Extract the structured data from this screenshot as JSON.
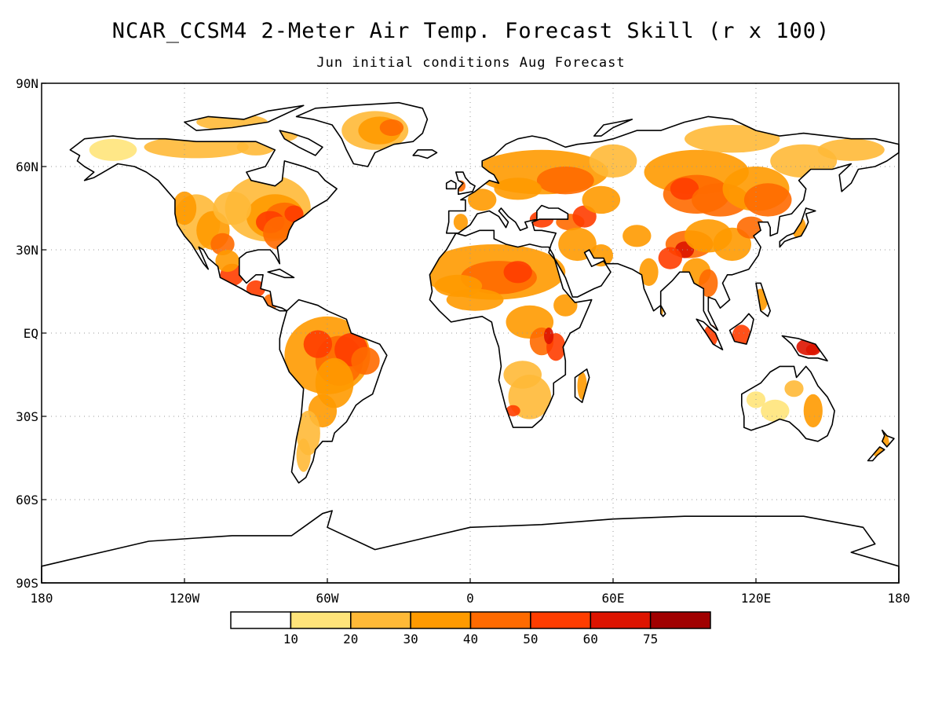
{
  "title": "NCAR_CCSM4 2-Meter Air Temp. Forecast Skill (r x 100)",
  "subtitle": "Jun initial conditions  Aug Forecast",
  "map": {
    "projection": "equirectangular",
    "lon_range": [
      -180,
      180
    ],
    "lat_range": [
      -90,
      90
    ],
    "gridlines": "dotted",
    "lat_labels": [
      "90N",
      "60N",
      "30N",
      "EQ",
      "30S",
      "60S",
      "90S"
    ],
    "lat_values": [
      90,
      60,
      30,
      0,
      -30,
      -60,
      -90
    ],
    "lon_labels": [
      "180",
      "120W",
      "60W",
      "0",
      "60E",
      "120E",
      "180"
    ],
    "lon_values": [
      -180,
      -120,
      -60,
      0,
      60,
      120,
      180
    ]
  },
  "legend": {
    "labels": [
      "10",
      "20",
      "30",
      "40",
      "50",
      "60",
      "75"
    ],
    "colors": [
      "#ffffff",
      "#ffe47a",
      "#ffb937",
      "#ff9a00",
      "#ff6a00",
      "#ff3d00",
      "#dd1400",
      "#a00000"
    ]
  },
  "colors": {
    "coastline": "#000000",
    "ocean": "#ffffff",
    "grid": "#999999"
  }
}
